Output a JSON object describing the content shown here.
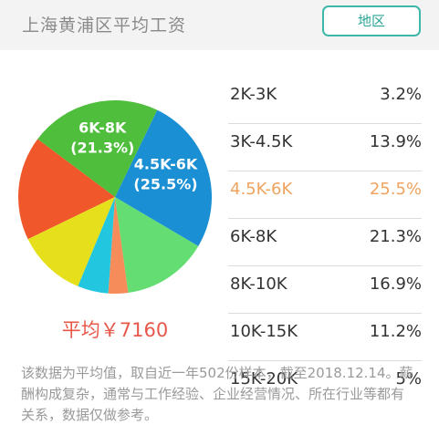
{
  "header": {
    "title": "上海黄浦区平均工资",
    "region_button": "地区"
  },
  "chart_data": {
    "type": "pie",
    "slices": [
      {
        "label": "2K-3K",
        "percent": 3.2,
        "color": "#f58c5a"
      },
      {
        "label": "3K-4.5K",
        "percent": 13.9,
        "color": "#64dd72"
      },
      {
        "label": "4.5K-6K",
        "percent": 25.5,
        "color": "#1b8fd4"
      },
      {
        "label": "6K-8K",
        "percent": 21.3,
        "color": "#4fbe3c"
      },
      {
        "label": "8K-10K",
        "percent": 16.9,
        "color": "#f0572a"
      },
      {
        "label": "10K-15K",
        "percent": 11.2,
        "color": "#e5e01b"
      },
      {
        "label": "15K-20K",
        "percent": 5,
        "color": "#22c7df"
      }
    ],
    "data_labels": [
      {
        "text": "4.5K-6K",
        "percent_text": "(25.5%)"
      },
      {
        "text": "6K-8K",
        "percent_text": "(21.3%)"
      }
    ]
  },
  "summary": {
    "average": "平均￥7160"
  },
  "ranges": [
    {
      "label": "2K-3K",
      "percent": "3.2%",
      "highlight": false
    },
    {
      "label": "3K-4.5K",
      "percent": "13.9%",
      "highlight": false
    },
    {
      "label": "4.5K-6K",
      "percent": "25.5%",
      "highlight": true
    },
    {
      "label": "6K-8K",
      "percent": "21.3%",
      "highlight": false
    },
    {
      "label": "8K-10K",
      "percent": "16.9%",
      "highlight": false
    },
    {
      "label": "10K-15K",
      "percent": "11.2%",
      "highlight": false
    },
    {
      "label": "15K-20K",
      "percent": "5%",
      "highlight": false
    }
  ],
  "footnote": "该数据为平均值，取自近一年502份样本，截至2018.12.14。薪酬构成复杂，通常与工作经验、企业经营情况、所在行业等都有关系，数据仅做参考。"
}
